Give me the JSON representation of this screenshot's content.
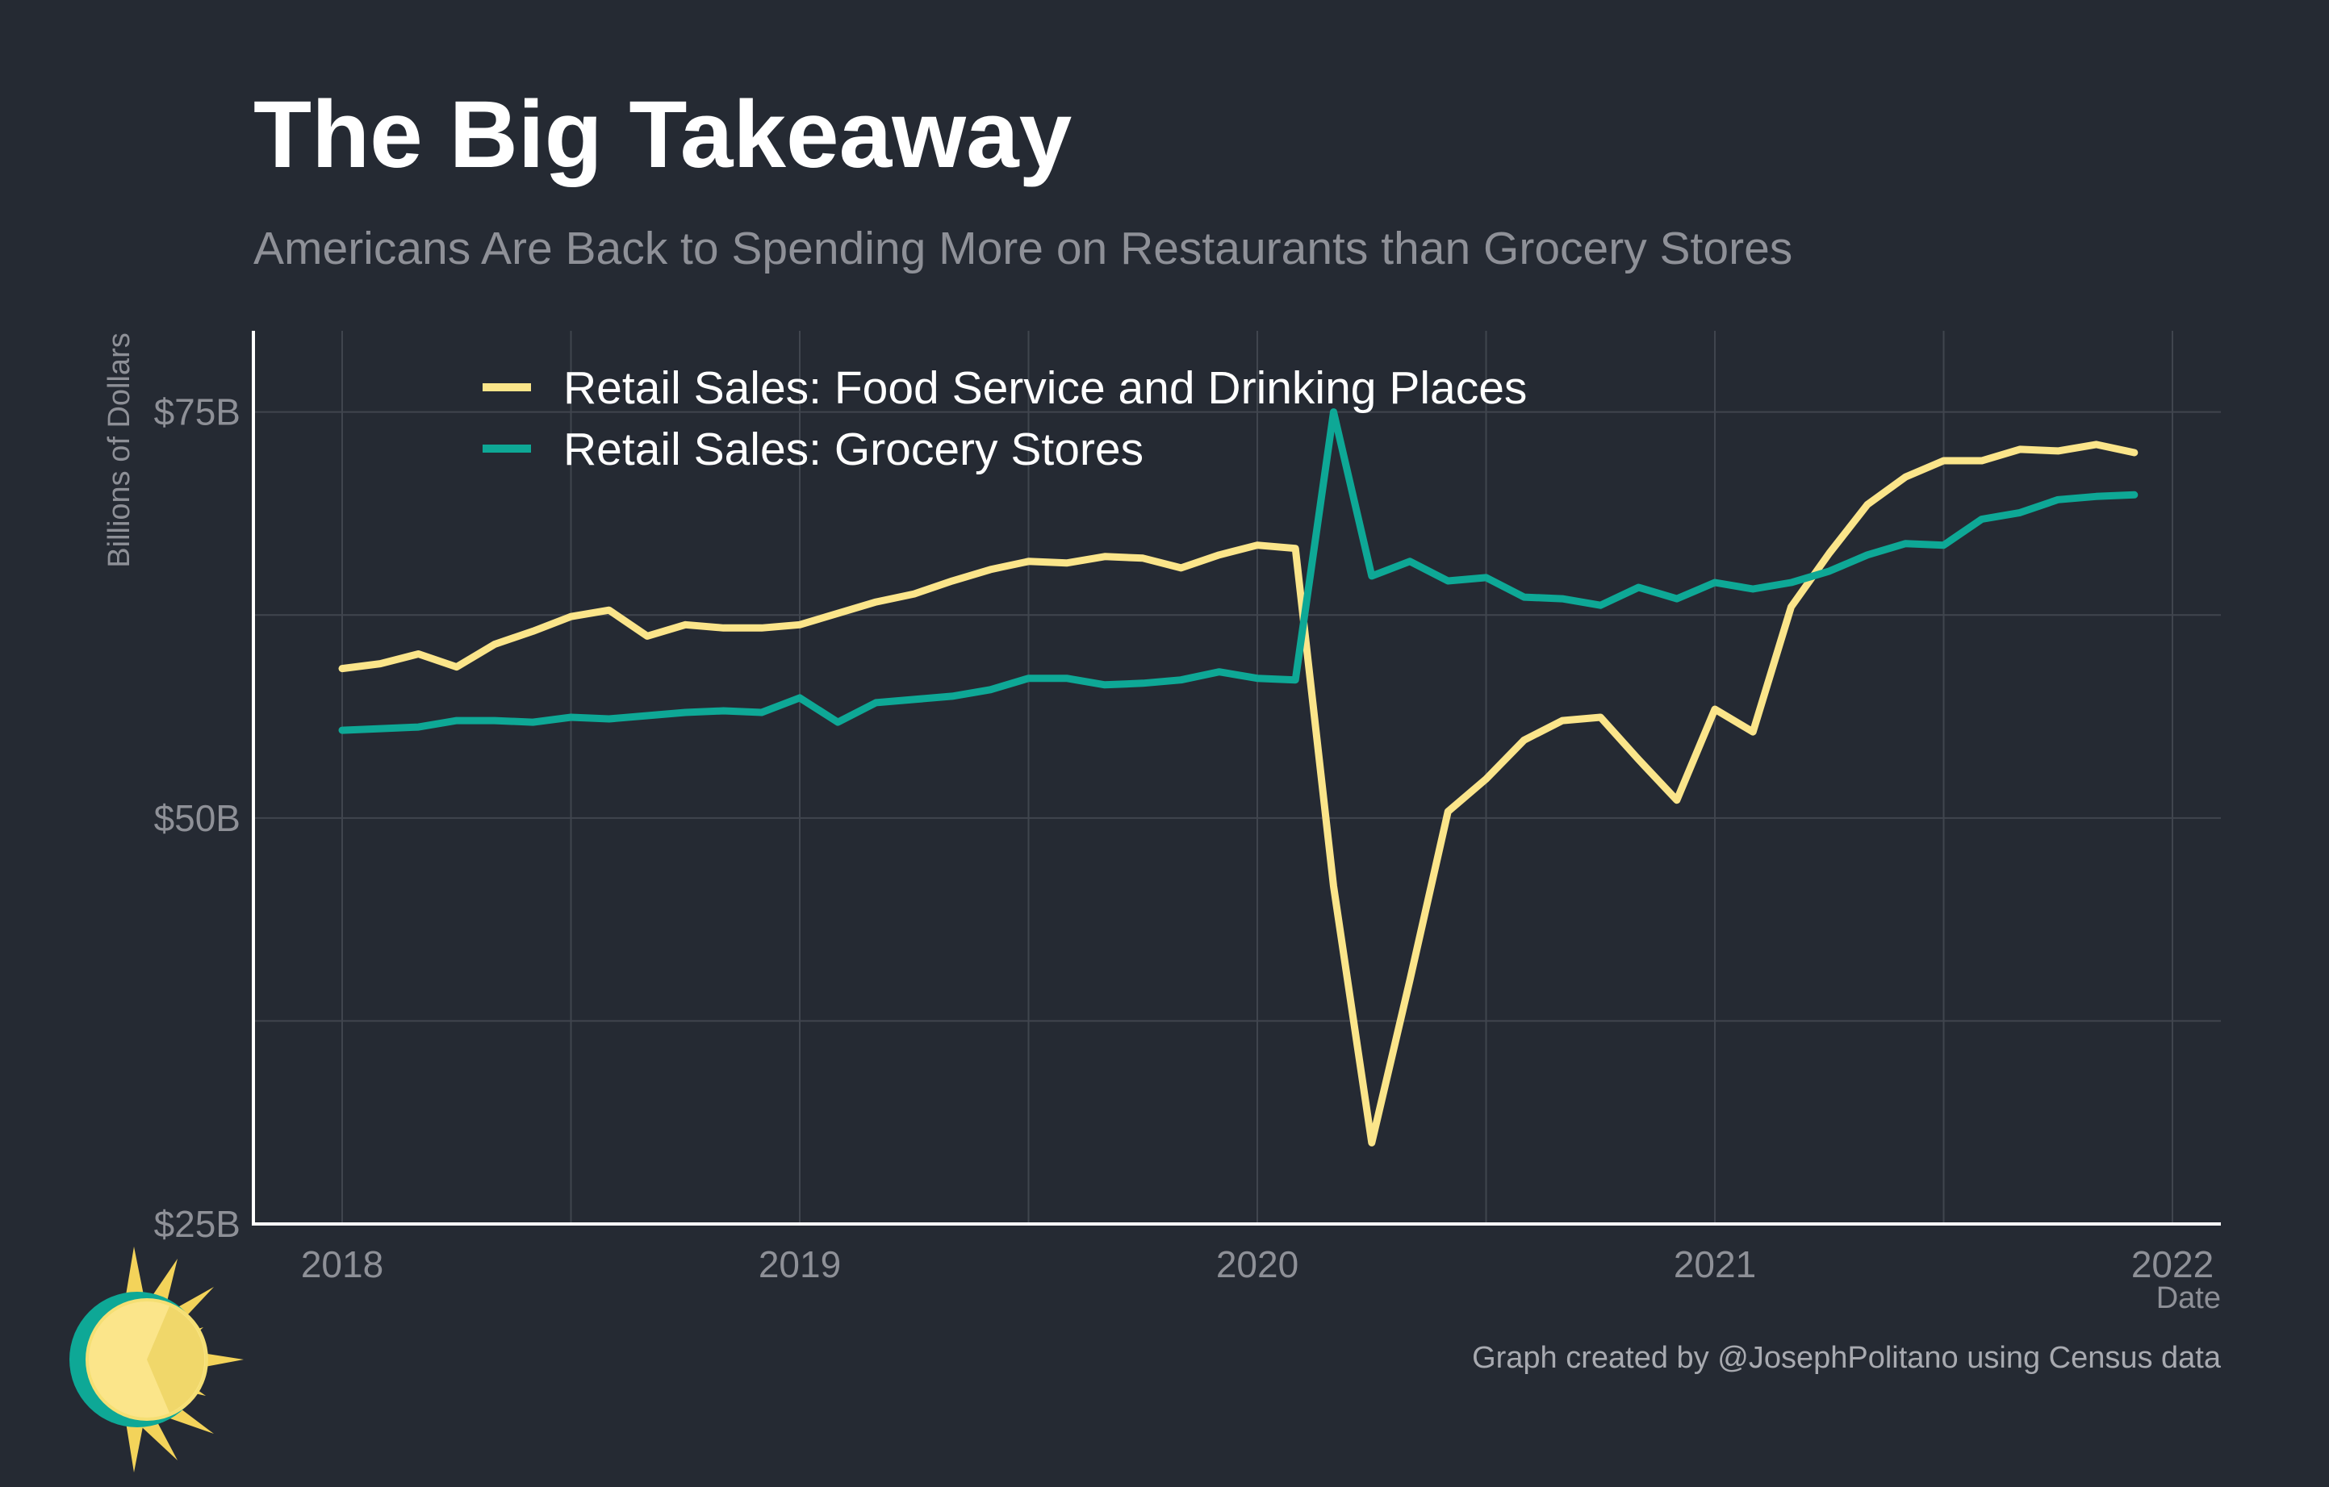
{
  "header": {
    "title": "The Big Takeaway",
    "subtitle": "Americans Are Back to Spending More on Restaurants than Grocery Stores"
  },
  "caption": "Graph created by @JosephPolitano using Census data",
  "chart_data": {
    "type": "line",
    "title": "The Big Takeaway",
    "subtitle": "Americans Are Back to Spending More on Restaurants than Grocery Stores",
    "xlabel": "Date",
    "ylabel": "Billions of Dollars",
    "ylim": [
      25,
      80
    ],
    "y_ticks": [
      25,
      50,
      75
    ],
    "y_tick_labels": [
      "$25B",
      "$50B",
      "$75B"
    ],
    "x_ticks": [
      "2018",
      "2019",
      "2020",
      "2021",
      "2022"
    ],
    "grid": true,
    "legend_position": "top-left",
    "x": [
      "2018-01",
      "2018-02",
      "2018-03",
      "2018-04",
      "2018-05",
      "2018-06",
      "2018-07",
      "2018-08",
      "2018-09",
      "2018-10",
      "2018-11",
      "2018-12",
      "2019-01",
      "2019-02",
      "2019-03",
      "2019-04",
      "2019-05",
      "2019-06",
      "2019-07",
      "2019-08",
      "2019-09",
      "2019-10",
      "2019-11",
      "2019-12",
      "2020-01",
      "2020-02",
      "2020-03",
      "2020-04",
      "2020-05",
      "2020-06",
      "2020-07",
      "2020-08",
      "2020-09",
      "2020-10",
      "2020-11",
      "2020-12",
      "2021-01",
      "2021-02",
      "2021-03",
      "2021-04",
      "2021-05",
      "2021-06",
      "2021-07",
      "2021-08",
      "2021-09",
      "2021-10",
      "2021-11",
      "2021-12"
    ],
    "series": [
      {
        "name": "Retail Sales: Food Service and Drinking Places",
        "color": "#fbe58a",
        "values": [
          59.2,
          59.5,
          60.1,
          59.3,
          60.7,
          61.5,
          62.4,
          62.8,
          61.2,
          61.9,
          61.7,
          61.7,
          61.9,
          62.6,
          63.3,
          63.8,
          64.6,
          65.3,
          65.8,
          65.7,
          66.1,
          66.0,
          65.4,
          66.2,
          66.8,
          66.6,
          45.8,
          30.0,
          40.0,
          50.4,
          52.4,
          54.8,
          56.0,
          56.2,
          53.6,
          51.1,
          56.7,
          55.3,
          63.0,
          66.3,
          69.3,
          71.0,
          72.0,
          72.0,
          72.7,
          72.6,
          73.0,
          72.5
        ]
      },
      {
        "name": "Retail Sales: Grocery Stores",
        "color": "#0ea896",
        "values": [
          55.4,
          55.5,
          55.6,
          56.0,
          56.0,
          55.9,
          56.2,
          56.1,
          56.3,
          56.5,
          56.6,
          56.5,
          57.4,
          55.9,
          57.1,
          57.3,
          57.5,
          57.9,
          58.6,
          58.6,
          58.2,
          58.3,
          58.5,
          59.0,
          58.6,
          58.5,
          75.0,
          64.9,
          65.8,
          64.6,
          64.8,
          63.6,
          63.5,
          63.1,
          64.2,
          63.5,
          64.5,
          64.1,
          64.5,
          65.2,
          66.2,
          66.9,
          66.8,
          68.4,
          68.8,
          69.6,
          69.8,
          69.9
        ]
      }
    ]
  }
}
